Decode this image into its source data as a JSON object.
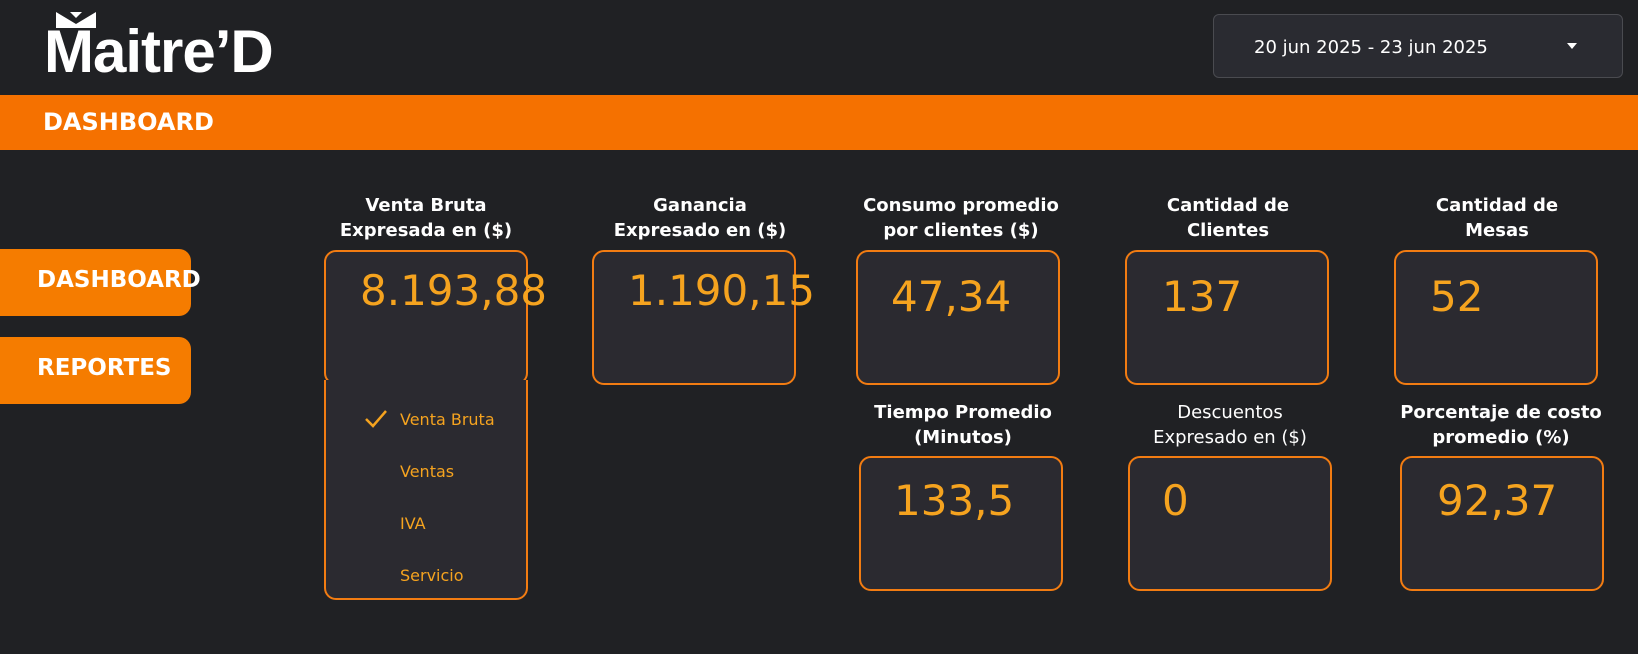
{
  "header": {
    "logo_text": "Maitre’D",
    "date_range": "20 jun 2025 - 23 jun 2025"
  },
  "banner": {
    "title": "DASHBOARD"
  },
  "sidebar": {
    "items": [
      {
        "label": "DASHBOARD"
      },
      {
        "label": "REPORTES"
      }
    ]
  },
  "metrics": [
    {
      "label_line1": "Venta Bruta",
      "label_line2": "Expresada en ($)",
      "value": "8.193,88"
    },
    {
      "label_line1": "Ganancia",
      "label_line2": "Expresado en ($)",
      "value": "1.190,15"
    },
    {
      "label_line1": "Consumo promedio",
      "label_line2": "por clientes ($)",
      "value": "47,34"
    },
    {
      "label_line1": "Cantidad de",
      "label_line2": "Clientes",
      "value": "137"
    },
    {
      "label_line1": "Cantidad de",
      "label_line2": "Mesas",
      "value": "52"
    },
    {
      "label_line1": "Tiempo Promedio",
      "label_line2": "(Minutos)",
      "value": "133,5"
    },
    {
      "label_line1": "Descuentos",
      "label_line2": "Expresado en ($)",
      "value": "0"
    },
    {
      "label_line1": "Porcentaje de costo",
      "label_line2": "promedio (%)",
      "value": "92,37"
    }
  ],
  "venta_dropdown": {
    "options": [
      {
        "label": "Venta Bruta",
        "selected": true
      },
      {
        "label": "Ventas",
        "selected": false
      },
      {
        "label": "IVA",
        "selected": false
      },
      {
        "label": "Servicio",
        "selected": false
      }
    ]
  },
  "colors": {
    "accent": "#f57100",
    "value": "#f5a31f",
    "background": "#202124",
    "card": "#2b2a30"
  }
}
